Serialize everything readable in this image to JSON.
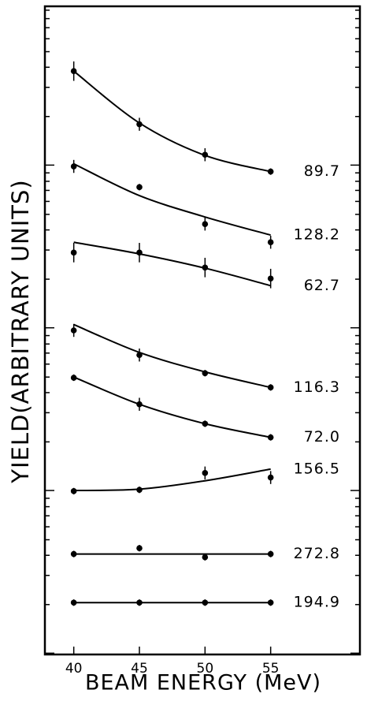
{
  "chart_data": {
    "type": "scatter",
    "xlabel": "BEAM ENERGY (MeV)",
    "ylabel": "YIELD(ARBITRARY UNITS)",
    "x": [
      40,
      45,
      50,
      55
    ],
    "xlim": [
      37.8,
      61.8
    ],
    "xticks": [
      40,
      45,
      50,
      55
    ],
    "ylim": [
      0,
      100
    ],
    "yticks": [
      0.2,
      7.7,
      12.2,
      15.3,
      17.7,
      19.7,
      21.4,
      22.8,
      24.1,
      25.3,
      32.8,
      37.3,
      40.4,
      42.8,
      44.8,
      46.5,
      47.9,
      49.2,
      50.4,
      57.9,
      62.4,
      65.5,
      67.9,
      69.9,
      71.6,
      73.0,
      74.3,
      75.5,
      83.0,
      87.5,
      90.6,
      93.0,
      95.0,
      96.7,
      98.1,
      99.4
    ],
    "color": "#000000",
    "series": [
      {
        "name": "89.7",
        "values": [
          90.0,
          81.8,
          77.1,
          74.5
        ],
        "errors": [
          1.5,
          1.0,
          1.0,
          0.5
        ],
        "fit": [
          90.0,
          82.0,
          77.0,
          74.5
        ]
      },
      {
        "name": "128.2",
        "values": [
          75.3,
          72.1,
          66.4,
          63.6
        ],
        "errors": [
          1.0,
          0.5,
          1.0,
          1.0
        ],
        "fit": [
          75.7,
          70.8,
          67.5,
          64.7
        ]
      },
      {
        "name": "62.7",
        "values": [
          62.0,
          62.0,
          59.7,
          58.0
        ],
        "errors": [
          1.5,
          1.5,
          1.5,
          1.5
        ],
        "fit": [
          63.6,
          61.8,
          59.6,
          56.9
        ]
      },
      {
        "name": "116.3",
        "values": [
          50.0,
          46.2,
          43.4,
          41.2
        ],
        "errors": [
          1.0,
          1.0,
          0.5,
          0.5
        ],
        "fit": [
          50.9,
          46.6,
          43.6,
          41.2
        ]
      },
      {
        "name": "72.0",
        "values": [
          42.7,
          38.6,
          35.6,
          33.5
        ],
        "errors": [
          0.5,
          1.0,
          0.5,
          0.5
        ],
        "fit": [
          42.8,
          38.6,
          35.6,
          33.5
        ]
      },
      {
        "name": "156.5",
        "values": [
          25.2,
          25.4,
          28.0,
          27.3
        ],
        "errors": [
          0.5,
          0.5,
          1.0,
          1.0
        ],
        "fit": [
          25.3,
          25.5,
          26.8,
          28.6
        ]
      },
      {
        "name": "272.8",
        "values": [
          15.5,
          16.4,
          15.0,
          15.5
        ],
        "errors": [
          0.5,
          0.5,
          0.5,
          0.5
        ],
        "fit": [
          15.5,
          15.5,
          15.5,
          15.5
        ]
      },
      {
        "name": "194.9",
        "values": [
          8.0,
          8.0,
          8.0,
          8.0
        ],
        "errors": [
          0.5,
          0.5,
          0.5,
          0.5
        ],
        "fit": [
          8.0,
          8.0,
          8.0,
          8.0
        ]
      }
    ]
  }
}
